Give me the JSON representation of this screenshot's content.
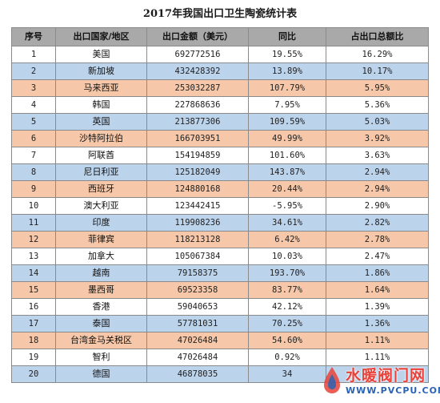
{
  "title": "2017年我国出口卫生陶瓷统计表",
  "headers": [
    "序号",
    "出口国家/地区",
    "出口金额（美元）",
    "同比",
    "占出口总额比"
  ],
  "rows": [
    {
      "no": "1",
      "country": "美国",
      "amount": "692772516",
      "yoy": "19.55%",
      "share": "16.29%",
      "color": "white"
    },
    {
      "no": "2",
      "country": "新加坡",
      "amount": "432428392",
      "yoy": "13.89%",
      "share": "10.17%",
      "color": "blue"
    },
    {
      "no": "3",
      "country": "马来西亚",
      "amount": "253032287",
      "yoy": "107.79%",
      "share": "5.95%",
      "color": "peach"
    },
    {
      "no": "4",
      "country": "韩国",
      "amount": "227868636",
      "yoy": "7.95%",
      "share": "5.36%",
      "color": "white"
    },
    {
      "no": "5",
      "country": "英国",
      "amount": "213877306",
      "yoy": "109.59%",
      "share": "5.03%",
      "color": "blue"
    },
    {
      "no": "6",
      "country": "沙特阿拉伯",
      "amount": "166703951",
      "yoy": "49.99%",
      "share": "3.92%",
      "color": "peach"
    },
    {
      "no": "7",
      "country": "阿联酋",
      "amount": "154194859",
      "yoy": "101.60%",
      "share": "3.63%",
      "color": "white"
    },
    {
      "no": "8",
      "country": "尼日利亚",
      "amount": "125182049",
      "yoy": "143.87%",
      "share": "2.94%",
      "color": "blue"
    },
    {
      "no": "9",
      "country": "西班牙",
      "amount": "124880168",
      "yoy": "20.44%",
      "share": "2.94%",
      "color": "peach"
    },
    {
      "no": "10",
      "country": "澳大利亚",
      "amount": "123442415",
      "yoy": "-5.95%",
      "share": "2.90%",
      "color": "white"
    },
    {
      "no": "11",
      "country": "印度",
      "amount": "119908236",
      "yoy": "34.61%",
      "share": "2.82%",
      "color": "blue"
    },
    {
      "no": "12",
      "country": "菲律宾",
      "amount": "118213128",
      "yoy": "6.42%",
      "share": "2.78%",
      "color": "peach"
    },
    {
      "no": "13",
      "country": "加拿大",
      "amount": "105067384",
      "yoy": "10.03%",
      "share": "2.47%",
      "color": "white"
    },
    {
      "no": "14",
      "country": "越南",
      "amount": "79158375",
      "yoy": "193.70%",
      "share": "1.86%",
      "color": "blue"
    },
    {
      "no": "15",
      "country": "墨西哥",
      "amount": "69523358",
      "yoy": "83.77%",
      "share": "1.64%",
      "color": "peach"
    },
    {
      "no": "16",
      "country": "香港",
      "amount": "59040653",
      "yoy": "42.12%",
      "share": "1.39%",
      "color": "white"
    },
    {
      "no": "17",
      "country": "泰国",
      "amount": "57781031",
      "yoy": "70.25%",
      "share": "1.36%",
      "color": "blue"
    },
    {
      "no": "18",
      "country": "台湾金马关税区",
      "amount": "47026484",
      "yoy": "54.60%",
      "share": "1.11%",
      "color": "peach"
    },
    {
      "no": "19",
      "country": "智利",
      "amount": "47026484",
      "yoy": "0.92%",
      "share": "1.11%",
      "color": "white"
    },
    {
      "no": "20",
      "country": "德国",
      "amount": "46878035",
      "yoy": "34",
      "share": "",
      "color": "blue"
    }
  ],
  "watermark": {
    "name": "水暖阀门网",
    "url": "WWW.PVCPU.COM"
  },
  "colors": {
    "header_bg": "#a9a9a9",
    "row_white": "#ffffff",
    "row_blue": "#bcd3ec",
    "row_peach": "#f6c8a9",
    "watermark_red": "#e8423a",
    "watermark_blue": "#2a63b3"
  }
}
